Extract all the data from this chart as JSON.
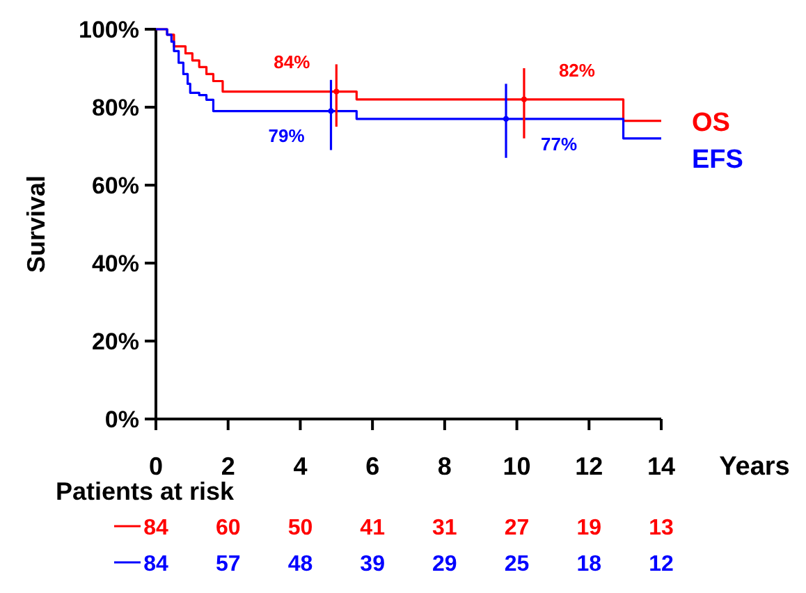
{
  "chart_data": {
    "type": "step",
    "ylabel": "Survival",
    "xlabel": "Years",
    "xlim": [
      0,
      14
    ],
    "ylim": [
      0,
      100
    ],
    "xticks": [
      0,
      2,
      4,
      6,
      8,
      10,
      12,
      14
    ],
    "yticks": [
      {
        "value": 0,
        "label": "0%"
      },
      {
        "value": 20,
        "label": "20%"
      },
      {
        "value": 40,
        "label": "40%"
      },
      {
        "value": 60,
        "label": "60%"
      },
      {
        "value": 80,
        "label": "80%"
      },
      {
        "value": 100,
        "label": "100%"
      }
    ],
    "series": [
      {
        "name": "OS",
        "color": "#ff0000",
        "x": [
          0,
          0.31,
          0.5,
          0.82,
          1.01,
          1.2,
          1.4,
          1.59,
          1.85,
          5.56,
          12.95,
          14
        ],
        "values": [
          100,
          98.6,
          95.6,
          93.8,
          92,
          90.3,
          88.5,
          86.7,
          84,
          82,
          76.5,
          76.5
        ]
      },
      {
        "name": "EFS",
        "color": "#0000ff",
        "x": [
          0,
          0.31,
          0.43,
          0.5,
          0.63,
          0.76,
          0.88,
          0.95,
          1.2,
          1.4,
          1.59,
          5.56,
          12.95,
          14
        ],
        "values": [
          100,
          98.6,
          96.8,
          94.4,
          91.4,
          88.5,
          86,
          83.7,
          83.1,
          81.9,
          79,
          77,
          72,
          72
        ]
      },
      {
        "type": "scatter",
        "color": "#ff0000",
        "x": [
          5,
          10.2
        ],
        "values": [
          84,
          82
        ],
        "errors": [
          [
            75,
            91
          ],
          [
            72,
            90
          ]
        ],
        "value_labels": [
          "84%",
          "82%"
        ]
      },
      {
        "type": "scatter",
        "color": "#0000ff",
        "x": [
          4.85,
          9.7
        ],
        "values": [
          79,
          77
        ],
        "errors": [
          [
            69,
            87
          ],
          [
            67,
            86
          ]
        ],
        "value_labels": [
          "79%",
          "77%"
        ]
      }
    ],
    "annotations": [
      "Patients at risk",
      "84",
      "60",
      "50",
      "41",
      "31",
      "27",
      "19",
      "13",
      "84",
      "57",
      "48",
      "39",
      "29",
      "25",
      "18",
      "12"
    ]
  }
}
